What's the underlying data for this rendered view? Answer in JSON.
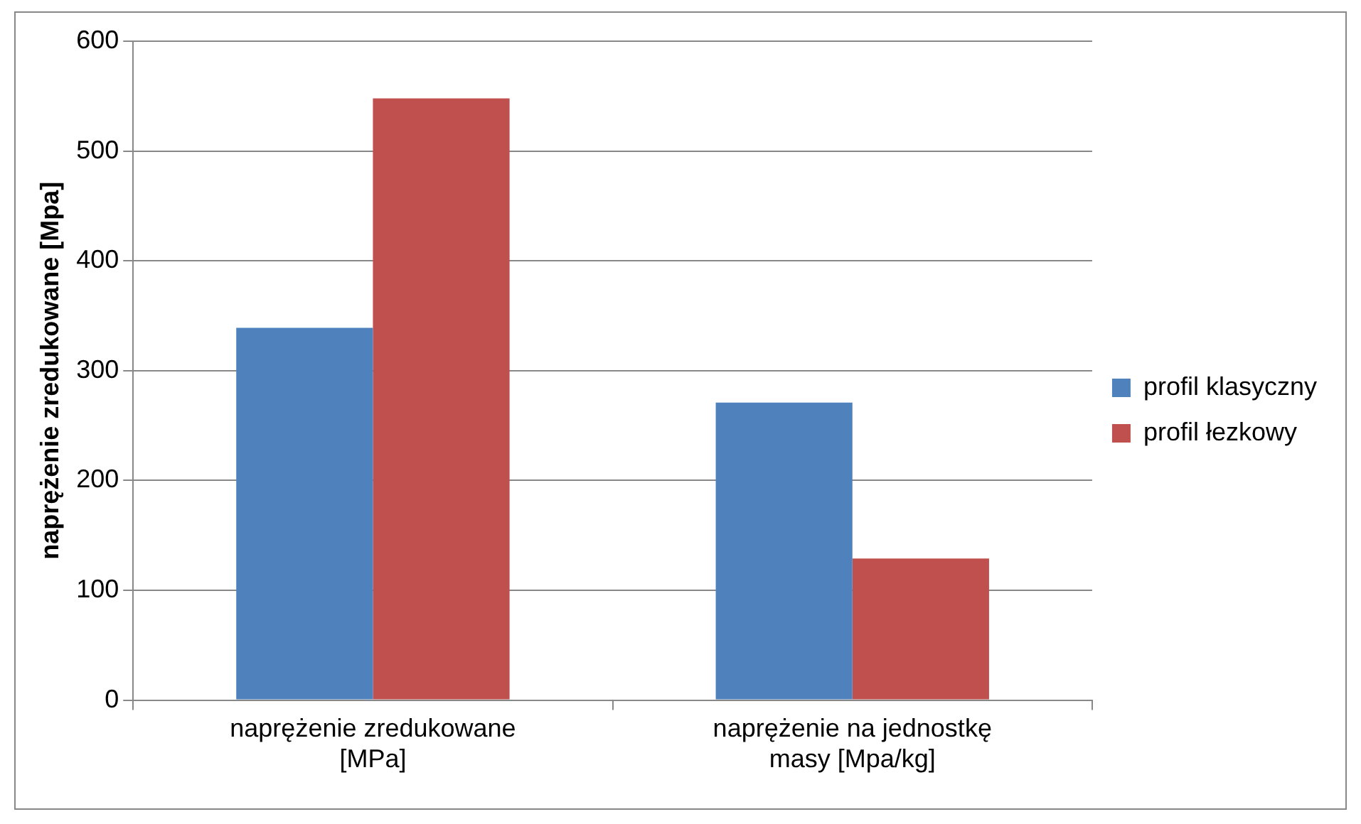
{
  "chart_data": {
    "type": "bar",
    "ylabel": "naprężenie zredukowane [Mpa]",
    "categories": [
      "naprężenie zredukowane\n[MPa]",
      "naprężenie na jednostkę\nmasy [Mpa/kg]"
    ],
    "series": [
      {
        "name": "profil klasyczny",
        "color": "#4f81bd",
        "values": [
          339,
          271
        ]
      },
      {
        "name": "profil łezkowy",
        "color": "#c0504d",
        "values": [
          548,
          129
        ]
      }
    ],
    "ylim": [
      0,
      600
    ],
    "yticks": [
      0,
      100,
      200,
      300,
      400,
      500,
      600
    ],
    "grid": "y",
    "legend": "right"
  }
}
